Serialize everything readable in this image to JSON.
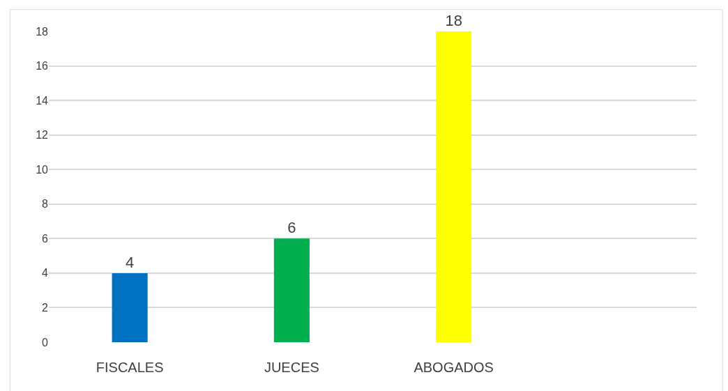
{
  "chart_data": {
    "type": "bar",
    "categories": [
      "FISCALES",
      "JUECES",
      "ABOGADOS",
      null
    ],
    "values": [
      4,
      6,
      18,
      null
    ],
    "colors": [
      "#0070c0",
      "#00b050",
      "#ffff00",
      "#ffffff"
    ],
    "ylim": [
      0,
      18
    ],
    "yticks": [
      0,
      2,
      4,
      6,
      8,
      10,
      12,
      14,
      16,
      18
    ],
    "grid": "y",
    "data_labels": true
  }
}
